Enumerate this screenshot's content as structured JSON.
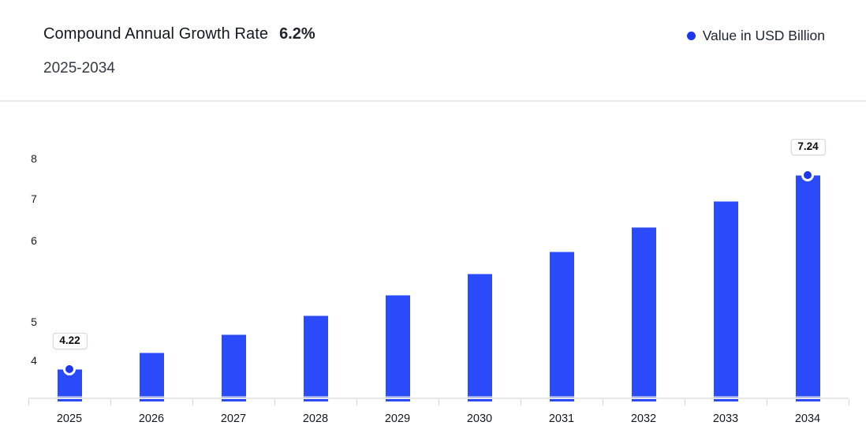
{
  "header": {
    "title": "Compound Annual Growth Rate",
    "cagr_value": "6.2%",
    "subtitle": "2025-2034"
  },
  "legend": {
    "label": "Value in USD Billion",
    "marker_color": "#1c36ee"
  },
  "chart_data": {
    "type": "bar",
    "title": "Compound Annual Growth Rate 6.2%",
    "subtitle": "2025-2034",
    "unit": "USD Billion",
    "legend": [
      "Value in USD Billion"
    ],
    "legend_position": "top-right",
    "grid": false,
    "categories": [
      "2025",
      "2026",
      "2027",
      "2028",
      "2029",
      "2030",
      "2031",
      "2032",
      "2033",
      "2034"
    ],
    "series": [
      {
        "name": "Value in USD Billion",
        "values": [
          4.22,
          4.48,
          4.76,
          5.05,
          5.37,
          5.7,
          6.05,
          6.43,
          6.83,
          7.24
        ]
      }
    ],
    "labeled_points": [
      {
        "category": "2025",
        "label": "4.22"
      },
      {
        "category": "2034",
        "label": "7.24"
      }
    ],
    "y_axis": {
      "tick_labels": [
        "8",
        "7",
        "6",
        "5",
        "4"
      ],
      "approx_range": [
        3.77,
        8.2
      ]
    },
    "colors": {
      "bar": "#2b4bfa",
      "bar_top_edge": "#8fa0fc",
      "marker": "#1c36ee",
      "axis_line": "#e7e7e7"
    }
  }
}
